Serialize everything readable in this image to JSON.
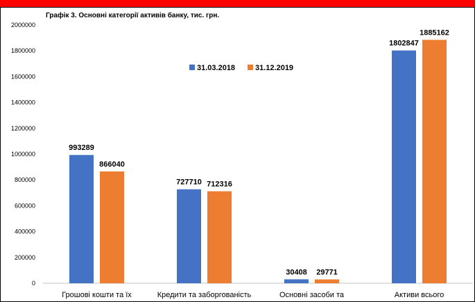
{
  "chart_data": {
    "type": "bar",
    "title": "Графік 3. Основні категорії активів банку, тис. грн.",
    "categories": [
      "Грошові кошти та їх",
      "Кредити та заборгованість",
      "Основні засоби та",
      "Активи всього"
    ],
    "series": [
      {
        "name": "31.03.2018",
        "values": [
          993289,
          727710,
          30408,
          1802847
        ],
        "color": "#4472c4"
      },
      {
        "name": "31.12.2019",
        "values": [
          866040,
          712316,
          29771,
          1885162
        ],
        "color": "#ed7d31"
      }
    ],
    "ylim": [
      0,
      2000000
    ],
    "yticks": [
      0,
      200000,
      400000,
      600000,
      800000,
      1000000,
      1200000,
      1400000,
      1600000,
      1800000,
      2000000
    ],
    "legend": "top-center",
    "grid": false
  },
  "frame": {
    "accent_color": "#ff0000"
  }
}
